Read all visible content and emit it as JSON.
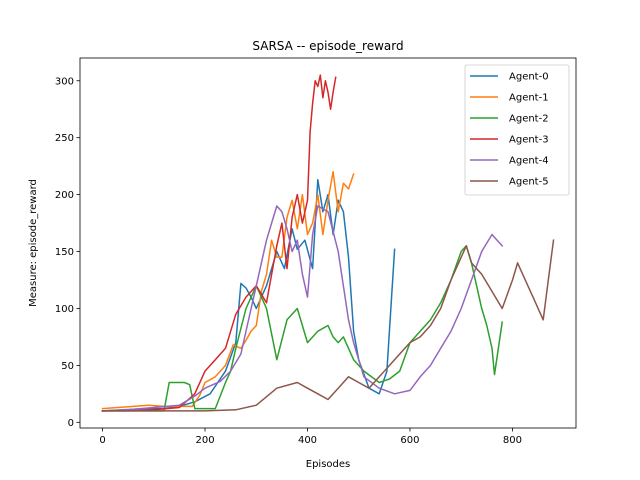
{
  "chart_data": {
    "type": "line",
    "title": "SARSA -- episode_reward",
    "xlabel": "Episodes",
    "ylabel": "Measure: episode_reward",
    "xlim": [
      -44,
      924
    ],
    "ylim": [
      -5,
      320
    ],
    "xticks": [
      0,
      200,
      400,
      600,
      800
    ],
    "yticks": [
      0,
      50,
      100,
      150,
      200,
      250,
      300
    ],
    "xtick_labels": [
      "0",
      "200",
      "400",
      "600",
      "800"
    ],
    "ytick_labels": [
      "0",
      "50",
      "100",
      "150",
      "200",
      "250",
      "300"
    ],
    "grid": false,
    "legend_position": "top-right",
    "series": [
      {
        "name": "Agent-0",
        "color": "#1f77b4",
        "x": [
          0,
          40,
          80,
          120,
          150,
          180,
          210,
          240,
          260,
          270,
          280,
          290,
          300,
          320,
          340,
          355,
          370,
          380,
          395,
          410,
          420,
          430,
          440,
          450,
          460,
          470,
          480,
          490,
          500,
          520,
          540,
          555,
          570
        ],
        "y": [
          10,
          11,
          12,
          12,
          14,
          18,
          25,
          45,
          70,
          122,
          118,
          110,
          100,
          120,
          150,
          135,
          170,
          152,
          160,
          135,
          213,
          185,
          200,
          165,
          195,
          185,
          145,
          80,
          55,
          30,
          25,
          45,
          152
        ]
      },
      {
        "name": "Agent-1",
        "color": "#ff7f0e",
        "x": [
          0,
          30,
          60,
          90,
          120,
          150,
          175,
          190,
          200,
          220,
          240,
          255,
          270,
          280,
          290,
          300,
          310,
          320,
          330,
          340,
          350,
          360,
          370,
          380,
          390,
          400,
          410,
          420,
          430,
          440,
          450,
          460,
          470,
          480,
          490
        ],
        "y": [
          12,
          13,
          14,
          15,
          14,
          14,
          14,
          24,
          35,
          40,
          50,
          68,
          65,
          72,
          80,
          85,
          115,
          130,
          160,
          145,
          145,
          180,
          195,
          170,
          200,
          165,
          175,
          200,
          165,
          195,
          220,
          185,
          210,
          205,
          218
        ]
      },
      {
        "name": "Agent-2",
        "color": "#2ca02c",
        "x": [
          0,
          40,
          80,
          120,
          130,
          160,
          170,
          180,
          190,
          200,
          220,
          240,
          250,
          260,
          280,
          300,
          310,
          320,
          340,
          360,
          380,
          400,
          420,
          440,
          450,
          460,
          470,
          480,
          490,
          510,
          540,
          560,
          580,
          600,
          620,
          640,
          660,
          680,
          700,
          710,
          720,
          730,
          740,
          750,
          760,
          765,
          780
        ],
        "y": [
          10,
          10,
          10,
          10,
          35,
          35,
          33,
          12,
          12,
          12,
          12,
          35,
          45,
          65,
          100,
          120,
          110,
          100,
          55,
          90,
          100,
          70,
          80,
          85,
          75,
          70,
          75,
          65,
          55,
          45,
          35,
          38,
          45,
          70,
          80,
          90,
          105,
          125,
          150,
          155,
          140,
          120,
          100,
          85,
          65,
          42,
          88
        ]
      },
      {
        "name": "Agent-3",
        "color": "#d62728",
        "x": [
          0,
          50,
          100,
          150,
          180,
          200,
          220,
          240,
          260,
          280,
          300,
          320,
          340,
          350,
          360,
          370,
          380,
          390,
          400,
          405,
          410,
          415,
          420,
          425,
          430,
          435,
          440,
          445,
          450,
          455
        ],
        "y": [
          10,
          10,
          11,
          13,
          25,
          45,
          55,
          65,
          95,
          110,
          120,
          105,
          155,
          175,
          135,
          180,
          200,
          175,
          195,
          255,
          280,
          300,
          295,
          305,
          285,
          300,
          290,
          275,
          290,
          303
        ]
      },
      {
        "name": "Agent-4",
        "color": "#9467bd",
        "x": [
          0,
          50,
          100,
          150,
          180,
          200,
          230,
          250,
          270,
          290,
          300,
          310,
          320,
          330,
          340,
          350,
          360,
          370,
          380,
          390,
          400,
          410,
          420,
          440,
          460,
          480,
          490,
          500,
          510,
          540,
          570,
          600,
          620,
          640,
          660,
          680,
          700,
          720,
          740,
          760,
          770,
          780
        ],
        "y": [
          10,
          11,
          13,
          15,
          23,
          30,
          36,
          45,
          60,
          100,
          120,
          140,
          160,
          175,
          190,
          185,
          170,
          150,
          160,
          130,
          110,
          165,
          190,
          185,
          150,
          90,
          70,
          55,
          40,
          30,
          25,
          28,
          40,
          50,
          65,
          80,
          100,
          125,
          150,
          165,
          160,
          155
        ]
      },
      {
        "name": "Agent-5",
        "color": "#8c564b",
        "x": [
          0,
          100,
          200,
          260,
          300,
          340,
          380,
          400,
          420,
          440,
          460,
          480,
          500,
          520,
          540,
          560,
          580,
          600,
          620,
          640,
          660,
          680,
          700,
          710,
          720,
          740,
          760,
          780,
          800,
          810,
          820,
          840,
          860,
          870,
          880
        ],
        "y": [
          10,
          10,
          10,
          11,
          15,
          30,
          35,
          30,
          25,
          20,
          30,
          40,
          35,
          30,
          40,
          50,
          60,
          70,
          75,
          85,
          100,
          125,
          145,
          155,
          140,
          130,
          115,
          100,
          125,
          140,
          130,
          110,
          90,
          125,
          160
        ]
      }
    ]
  }
}
